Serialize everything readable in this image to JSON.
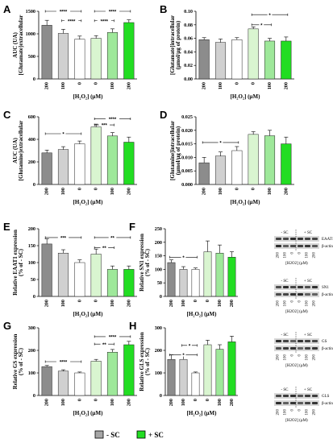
{
  "figure": {
    "legend": [
      {
        "label": "- SC",
        "color": "#a6a6a6"
      },
      {
        "label": "+ SC",
        "color": "#22dd22"
      }
    ],
    "bar_colors": [
      "#8c8c8c",
      "#d0d0d0",
      "#ffffff",
      "#d9f5d0",
      "#9ee89a",
      "#22dd22"
    ],
    "blots": {
      "groups": [
        "- SC",
        "+ SC"
      ],
      "doses": [
        "200",
        "100",
        "0",
        "0",
        "100",
        "200"
      ],
      "xlabel": "[H2O2] (µM)",
      "panels": [
        {
          "id": "F1",
          "bands": [
            "EAAT1",
            "β-actin"
          ]
        },
        {
          "id": "F2",
          "bands": [
            "SN1",
            "β-actin"
          ]
        },
        {
          "id": "G",
          "bands": [
            "GS",
            "β-actin"
          ]
        },
        {
          "id": "H",
          "bands": [
            "GLS",
            "β-actin"
          ]
        }
      ]
    }
  },
  "chart_data": [
    {
      "id": "A",
      "type": "bar",
      "ylabel": "AUC (UA)",
      "ylabel2": "[Glutamate]extracellular",
      "xlabel": "[H₂O₂] (µM)",
      "categories": [
        "200",
        "100",
        "0",
        "0",
        "100",
        "200"
      ],
      "values": [
        1190,
        1010,
        880,
        900,
        1030,
        1250
      ],
      "errors": [
        110,
        90,
        70,
        60,
        80,
        60
      ],
      "ylim": [
        0,
        1500
      ],
      "ticks": [
        0,
        500,
        1000,
        1500
      ],
      "tick_labels": [
        "0",
        "500",
        "1000",
        "1500"
      ],
      "significance": [
        {
          "from": 0,
          "to": 2,
          "label": "****",
          "level": 1.0
        },
        {
          "from": 1,
          "to": 2,
          "label": "****",
          "level": 0.86
        },
        {
          "from": 3,
          "to": 4,
          "label": "****",
          "level": 0.86
        },
        {
          "from": 3,
          "to": 5,
          "label": "****",
          "level": 1.0
        }
      ]
    },
    {
      "id": "B",
      "type": "bar",
      "ylabel": "[Glutamate]intracellular",
      "ylabel2": "(µmol/µg of protein)",
      "xlabel": "[H₂O₂] (µM)",
      "categories": [
        "200",
        "100",
        "0",
        "0",
        "100",
        "200"
      ],
      "values": [
        0.058,
        0.054,
        0.058,
        0.074,
        0.056,
        0.056
      ],
      "errors": [
        0.003,
        0.005,
        0.003,
        0.003,
        0.004,
        0.006
      ],
      "ylim": [
        0,
        0.1
      ],
      "ticks": [
        0,
        0.02,
        0.04,
        0.06,
        0.08,
        0.1
      ],
      "tick_labels": [
        "0.00",
        "0.02",
        "0.04",
        "0.06",
        "0.08",
        "0.10"
      ],
      "significance": [
        {
          "from": 3,
          "to": 4,
          "label": "*",
          "level": 0.8
        },
        {
          "from": 3,
          "to": 5,
          "label": "*",
          "level": 0.95
        }
      ]
    },
    {
      "id": "C",
      "type": "bar",
      "ylabel": "AUC (UA)",
      "ylabel2": "[Glutamine]extracellular",
      "xlabel": "[H₂O₂] (µM)",
      "categories": [
        "200",
        "100",
        "0",
        "0",
        "100",
        "200"
      ],
      "values": [
        280,
        310,
        360,
        510,
        430,
        375
      ],
      "errors": [
        25,
        25,
        25,
        25,
        30,
        45
      ],
      "ylim": [
        0,
        600
      ],
      "ticks": [
        0,
        200,
        400,
        600
      ],
      "tick_labels": [
        "0",
        "200",
        "400",
        "600"
      ],
      "significance": [
        {
          "from": 0,
          "to": 2,
          "label": "*",
          "level": 0.75
        },
        {
          "from": 3,
          "to": 4,
          "label": "***",
          "level": 0.88
        },
        {
          "from": 3,
          "to": 5,
          "label": "****",
          "level": 0.97
        }
      ]
    },
    {
      "id": "D",
      "type": "bar",
      "ylabel": "[Glutamine]intracellular",
      "ylabel2": "(µmol/µg of protein)",
      "xlabel": "[H₂O₂] (µM)",
      "categories": [
        "200",
        "100",
        "0",
        "0",
        "100",
        "200"
      ],
      "values": [
        0.008,
        0.0105,
        0.0125,
        0.0185,
        0.018,
        0.015
      ],
      "errors": [
        0.002,
        0.0015,
        0.0015,
        0.001,
        0.002,
        0.0025
      ],
      "ylim": [
        0,
        0.025
      ],
      "ticks": [
        0,
        0.005,
        0.01,
        0.015,
        0.02,
        0.025
      ],
      "tick_labels": [
        "0.000",
        "0.005",
        "0.010",
        "0.015",
        "0.020",
        "0.025"
      ],
      "significance": [
        {
          "from": 0,
          "to": 2,
          "label": "*",
          "level": 0.62
        }
      ]
    },
    {
      "id": "E",
      "type": "bar",
      "ylabel": "Relative  EAAT1 expression",
      "ylabel2": "(% of - SC)",
      "xlabel": "[H₂O₂] (µM)",
      "categories": [
        "200",
        "100",
        "0",
        "0",
        "100",
        "200"
      ],
      "values": [
        155,
        128,
        100,
        125,
        80,
        80
      ],
      "errors": [
        15,
        10,
        8,
        15,
        10,
        10
      ],
      "ylim": [
        0,
        200
      ],
      "ticks": [
        0,
        50,
        100,
        150,
        200
      ],
      "tick_labels": [
        "0",
        "50",
        "100",
        "150",
        "200"
      ],
      "significance": [
        {
          "from": 0,
          "to": 2,
          "label": "***",
          "level": 0.87
        },
        {
          "from": 3,
          "to": 4,
          "label": "**",
          "level": 0.72
        },
        {
          "from": 3,
          "to": 5,
          "label": "**",
          "level": 0.87
        }
      ]
    },
    {
      "id": "F",
      "type": "bar",
      "ylabel": "Relative SN1 expression",
      "ylabel2": "(% of - SC)",
      "xlabel": "[H₂O₂] (µM)",
      "categories": [
        "200",
        "100",
        "0",
        "0",
        "100",
        "200"
      ],
      "values": [
        125,
        100,
        100,
        165,
        160,
        145
      ],
      "errors": [
        10,
        10,
        5,
        40,
        30,
        20
      ],
      "ylim": [
        0,
        250
      ],
      "ticks": [
        0,
        50,
        100,
        150,
        200,
        250
      ],
      "tick_labels": [
        "0",
        "50",
        "100",
        "150",
        "200",
        "250"
      ],
      "significance": [
        {
          "from": 0,
          "to": 2,
          "label": "*",
          "level": 0.58
        }
      ]
    },
    {
      "id": "G",
      "type": "bar",
      "ylabel": "Relative  GS expression",
      "ylabel2": "(% of - SC)",
      "xlabel": "[H₂O₂] (µM)",
      "categories": [
        "200",
        "100",
        "0",
        "0",
        "100",
        "200"
      ],
      "values": [
        128,
        108,
        100,
        152,
        192,
        225
      ],
      "errors": [
        5,
        6,
        4,
        8,
        12,
        15
      ],
      "ylim": [
        0,
        300
      ],
      "ticks": [
        0,
        100,
        200,
        300
      ],
      "tick_labels": [
        "0",
        "100",
        "200",
        "300"
      ],
      "significance": [
        {
          "from": 0,
          "to": 2,
          "label": "****",
          "level": 0.5
        },
        {
          "from": 3,
          "to": 4,
          "label": "**",
          "level": 0.76
        },
        {
          "from": 3,
          "to": 5,
          "label": "****",
          "level": 0.87
        }
      ]
    },
    {
      "id": "H",
      "type": "bar",
      "ylabel": "Relative  GLS expression",
      "ylabel2": "(% of - SC)",
      "xlabel": "[H₂O₂] (µM)",
      "categories": [
        "200",
        "100",
        "0",
        "0",
        "100",
        "200"
      ],
      "values": [
        160,
        160,
        100,
        225,
        205,
        238
      ],
      "errors": [
        20,
        18,
        4,
        20,
        20,
        25
      ],
      "ylim": [
        0,
        300
      ],
      "ticks": [
        0,
        100,
        200,
        300
      ],
      "tick_labels": [
        "0",
        "100",
        "200",
        "300"
      ],
      "significance": [
        {
          "from": 0,
          "to": 2,
          "label": "*",
          "level": 0.6
        },
        {
          "from": 1,
          "to": 2,
          "label": "*",
          "level": 0.74
        }
      ]
    }
  ]
}
